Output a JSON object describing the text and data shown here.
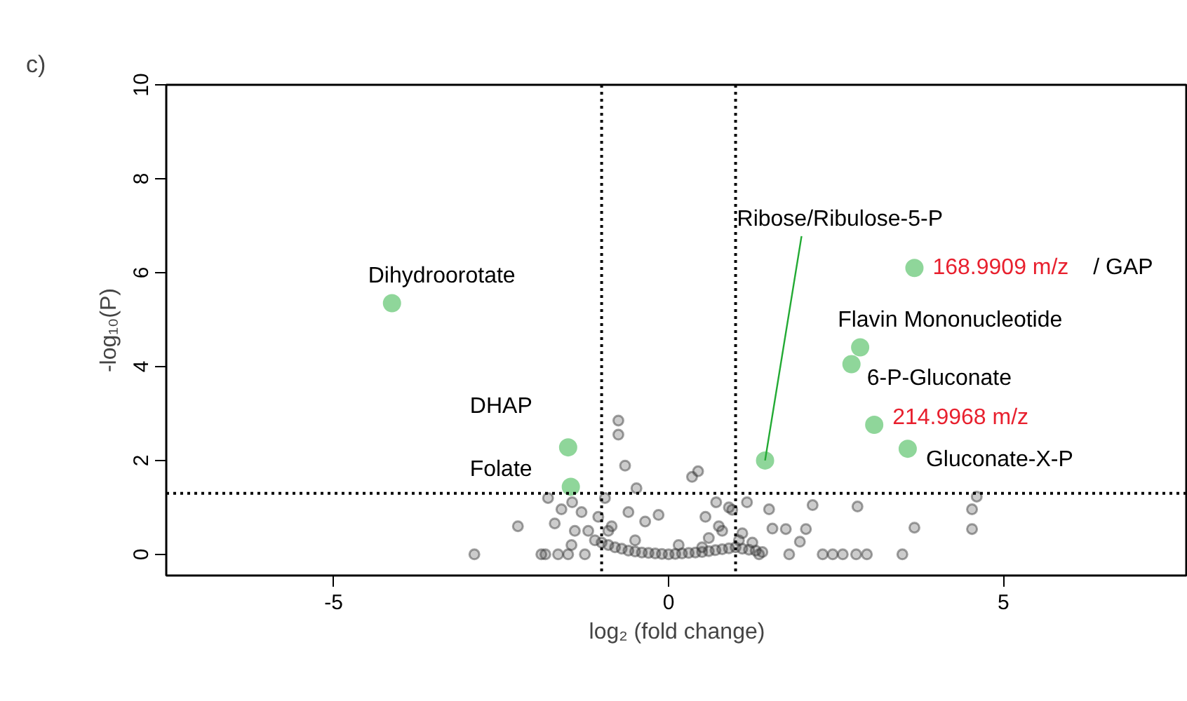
{
  "chart_data": {
    "type": "scatter",
    "xlabel": "log₂ (fold change)",
    "ylabel": "-log₁₀(P)",
    "xlim": [
      -7.5,
      7.75
    ],
    "ylim": [
      -0.45,
      10
    ],
    "xticks": [
      -5,
      0,
      5
    ],
    "yticks": [
      0,
      2,
      4,
      6,
      8,
      10
    ],
    "grid": false,
    "marker": "circle",
    "series": [
      {
        "color": "#333333",
        "x": [
          -0.75,
          -0.75,
          -0.65,
          0.44,
          0.35,
          -0.48,
          -2.25,
          -2.9,
          -1.84,
          -1.5,
          1.5,
          2.15,
          2.82,
          3.67,
          4.53,
          4.53,
          4.6,
          3.49,
          2.96,
          2.6,
          2.8,
          1.75,
          2.05,
          1.55,
          1.96,
          1.17,
          0.71,
          -0.15,
          -1.44,
          -1.6,
          -1.7,
          -1.4,
          -1.2,
          -1.45,
          -1.1,
          -1.0,
          -0.9,
          -0.8,
          -0.7,
          -0.6,
          -0.5,
          -0.4,
          -0.3,
          -0.2,
          -0.1,
          0.0,
          0.1,
          0.2,
          0.3,
          0.4,
          0.5,
          0.6,
          0.7,
          0.8,
          0.9,
          1.0,
          1.1,
          1.2,
          1.3,
          1.4,
          -0.85,
          -0.6,
          -0.35,
          0.55,
          0.8,
          0.95,
          -0.95,
          -1.3,
          -1.8,
          -1.05,
          0.6,
          0.75,
          0.9,
          1.1,
          1.25,
          -0.9,
          -0.5,
          0.15,
          0.5,
          1.05,
          -1.25,
          -1.65,
          -1.9,
          2.3,
          2.45,
          1.8,
          1.35
        ],
        "values": [
          2.85,
          2.55,
          1.89,
          1.77,
          1.65,
          1.41,
          0.6,
          0.0,
          0.0,
          0.0,
          0.96,
          1.05,
          1.02,
          0.57,
          0.96,
          0.54,
          1.23,
          0.0,
          0.0,
          0.0,
          0.0,
          0.54,
          0.54,
          0.55,
          0.27,
          1.11,
          1.11,
          0.84,
          1.11,
          0.96,
          0.66,
          0.5,
          0.5,
          0.2,
          0.3,
          0.25,
          0.2,
          0.15,
          0.12,
          0.08,
          0.06,
          0.04,
          0.03,
          0.02,
          0.01,
          0.0,
          0.01,
          0.02,
          0.03,
          0.04,
          0.05,
          0.07,
          0.09,
          0.11,
          0.13,
          0.15,
          0.12,
          0.1,
          0.08,
          0.05,
          0.6,
          0.9,
          0.7,
          0.8,
          0.5,
          0.95,
          1.2,
          0.9,
          1.2,
          0.8,
          0.35,
          0.6,
          1.0,
          0.45,
          0.25,
          0.5,
          0.3,
          0.2,
          0.15,
          0.3,
          0.0,
          0.0,
          0.0,
          0.0,
          0.0,
          0.0,
          0.0
        ]
      },
      {
        "color": "#8fd69a",
        "x": [
          -4.13,
          -1.5,
          -1.46,
          1.44,
          3.67,
          2.86,
          2.73,
          3.07,
          3.57
        ],
        "values": [
          5.35,
          2.28,
          1.44,
          2.0,
          6.1,
          4.41,
          4.05,
          2.76,
          2.25
        ]
      }
    ],
    "ref_lines": [
      {
        "axis": "x",
        "value": -1,
        "color": "#000000",
        "line_style": "dotted"
      },
      {
        "axis": "x",
        "value": 1,
        "color": "#000000",
        "line_style": "dotted"
      },
      {
        "axis": "y",
        "value": 1.3,
        "color": "#000000",
        "line_style": "dotted"
      }
    ],
    "annotations": [
      "c)",
      {
        "text": "Dihydroorotate",
        "x": -4.13,
        "y": 5.35
      },
      {
        "text": "DHAP",
        "x": -1.5,
        "y": 2.28
      },
      {
        "text": "Folate",
        "x": -1.46,
        "y": 1.44
      },
      {
        "text": "Ribose/Ribulose-5-P",
        "x": 1.44,
        "y": 2.0
      },
      {
        "text": "168.9909 m/z / GAP",
        "x": 3.67,
        "y": 6.1
      },
      {
        "text": "Flavin Mononucleotide",
        "x": 2.86,
        "y": 4.41
      },
      {
        "text": "6-P-Gluconate",
        "x": 2.73,
        "y": 4.05
      },
      {
        "text": "214.9968 m/z",
        "x": 3.07,
        "y": 2.76
      },
      {
        "text": "Gluconate-X-P",
        "x": 3.57,
        "y": 2.25
      }
    ]
  }
}
